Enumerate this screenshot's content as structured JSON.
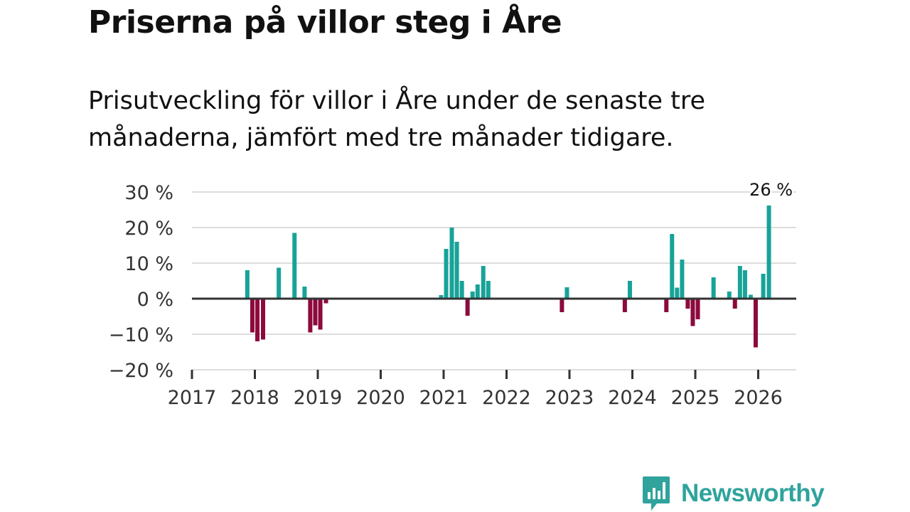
{
  "title": "Priserna på villor steg i Åre",
  "subtitle": "Prisutveckling för villor i Åre under de senaste tre månaderna, jämfört med tre månader tidigare.",
  "brand": {
    "name": "Newsworthy",
    "logo_icon": "bar-chart-speech-bubble-icon",
    "color": "#2fa39c"
  },
  "colors": {
    "positive": "#17a398",
    "negative": "#8c0a3c",
    "grid": "#dddddd",
    "zero": "#333333",
    "axis": "#333333"
  },
  "chart_data": {
    "type": "bar",
    "title": "Priserna på villor steg i Åre",
    "ylabel": "",
    "xlabel": "",
    "ylim": [
      -20,
      30
    ],
    "xlim": [
      2017.0,
      2026.6
    ],
    "yticks": [
      30,
      20,
      10,
      0,
      -10,
      -20
    ],
    "ytick_labels": [
      "30 %",
      "20 %",
      "10 %",
      "0 %",
      "−10 %",
      "−20 %"
    ],
    "xticks": [
      2017,
      2018,
      2019,
      2020,
      2021,
      2022,
      2023,
      2024,
      2025,
      2026
    ],
    "xtick_labels": [
      "2017",
      "2018",
      "2019",
      "2020",
      "2021",
      "2022",
      "2023",
      "2024",
      "2025",
      "2026"
    ],
    "grid": true,
    "annotation": {
      "text": "26 %",
      "x": 2026.17,
      "y": 26
    },
    "x": [
      2017.88,
      2017.96,
      2018.04,
      2018.13,
      2018.38,
      2018.63,
      2018.79,
      2018.88,
      2018.96,
      2019.04,
      2019.13,
      2020.96,
      2021.04,
      2021.13,
      2021.21,
      2021.29,
      2021.38,
      2021.46,
      2021.54,
      2021.63,
      2021.71,
      2022.88,
      2022.96,
      2023.88,
      2023.96,
      2024.54,
      2024.63,
      2024.71,
      2024.79,
      2024.88,
      2024.96,
      2025.04,
      2025.29,
      2025.54,
      2025.63,
      2025.71,
      2025.79,
      2025.88,
      2025.96,
      2026.08,
      2026.17
    ],
    "values": [
      8,
      -9.5,
      -12,
      -11.5,
      8.7,
      18.5,
      3.4,
      -9.5,
      -7.5,
      -8.7,
      -1.3,
      1,
      14,
      20,
      16,
      5,
      -4.8,
      2,
      4,
      9.2,
      5,
      -3.8,
      3.2,
      -3.8,
      5,
      -3.8,
      18.2,
      3.1,
      11,
      -2.8,
      -7.7,
      -5.8,
      6,
      2,
      -2.8,
      9.2,
      8,
      1.1,
      -13.7,
      7,
      26.2
    ]
  }
}
